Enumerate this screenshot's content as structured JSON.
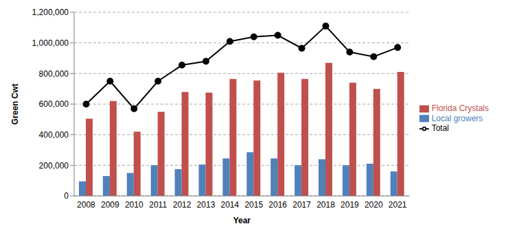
{
  "chart_data": {
    "type": "bar",
    "x_label": "Year",
    "y_label": "Green Cwt",
    "categories": [
      "2008",
      "2009",
      "2010",
      "2011",
      "2012",
      "2013",
      "2014",
      "2015",
      "2016",
      "2017",
      "2018",
      "2019",
      "2020",
      "2021"
    ],
    "series": [
      {
        "name": "Local growers",
        "type": "bar",
        "color": "#4f81bd",
        "values": [
          95000,
          130000,
          150000,
          200000,
          175000,
          205000,
          245000,
          285000,
          245000,
          200000,
          240000,
          200000,
          210000,
          160000
        ]
      },
      {
        "name": "Florida Crystals",
        "type": "bar",
        "color": "#c0504d",
        "values": [
          505000,
          620000,
          420000,
          550000,
          680000,
          675000,
          765000,
          755000,
          805000,
          765000,
          870000,
          740000,
          700000,
          810000
        ]
      },
      {
        "name": "Total",
        "type": "line",
        "color": "#000000",
        "marker": "circle",
        "line_style": "solid",
        "values": [
          600000,
          750000,
          570000,
          750000,
          855000,
          880000,
          1010000,
          1040000,
          1050000,
          965000,
          1110000,
          940000,
          910000,
          970000
        ]
      }
    ],
    "ylim": [
      0,
      1200000
    ],
    "yticks": [
      0,
      {
        "value": 200000,
        "label": "200,000"
      },
      {
        "value": 400000,
        "label": "400,000"
      },
      {
        "value": 600000,
        "label": "600,000"
      },
      {
        "value": 800000,
        "label": "800,000"
      },
      {
        "value": 1000000,
        "label": "1,000,000"
      },
      {
        "value": 1200000,
        "label": "1,200,000"
      }
    ],
    "grid": true,
    "legend": "right"
  }
}
